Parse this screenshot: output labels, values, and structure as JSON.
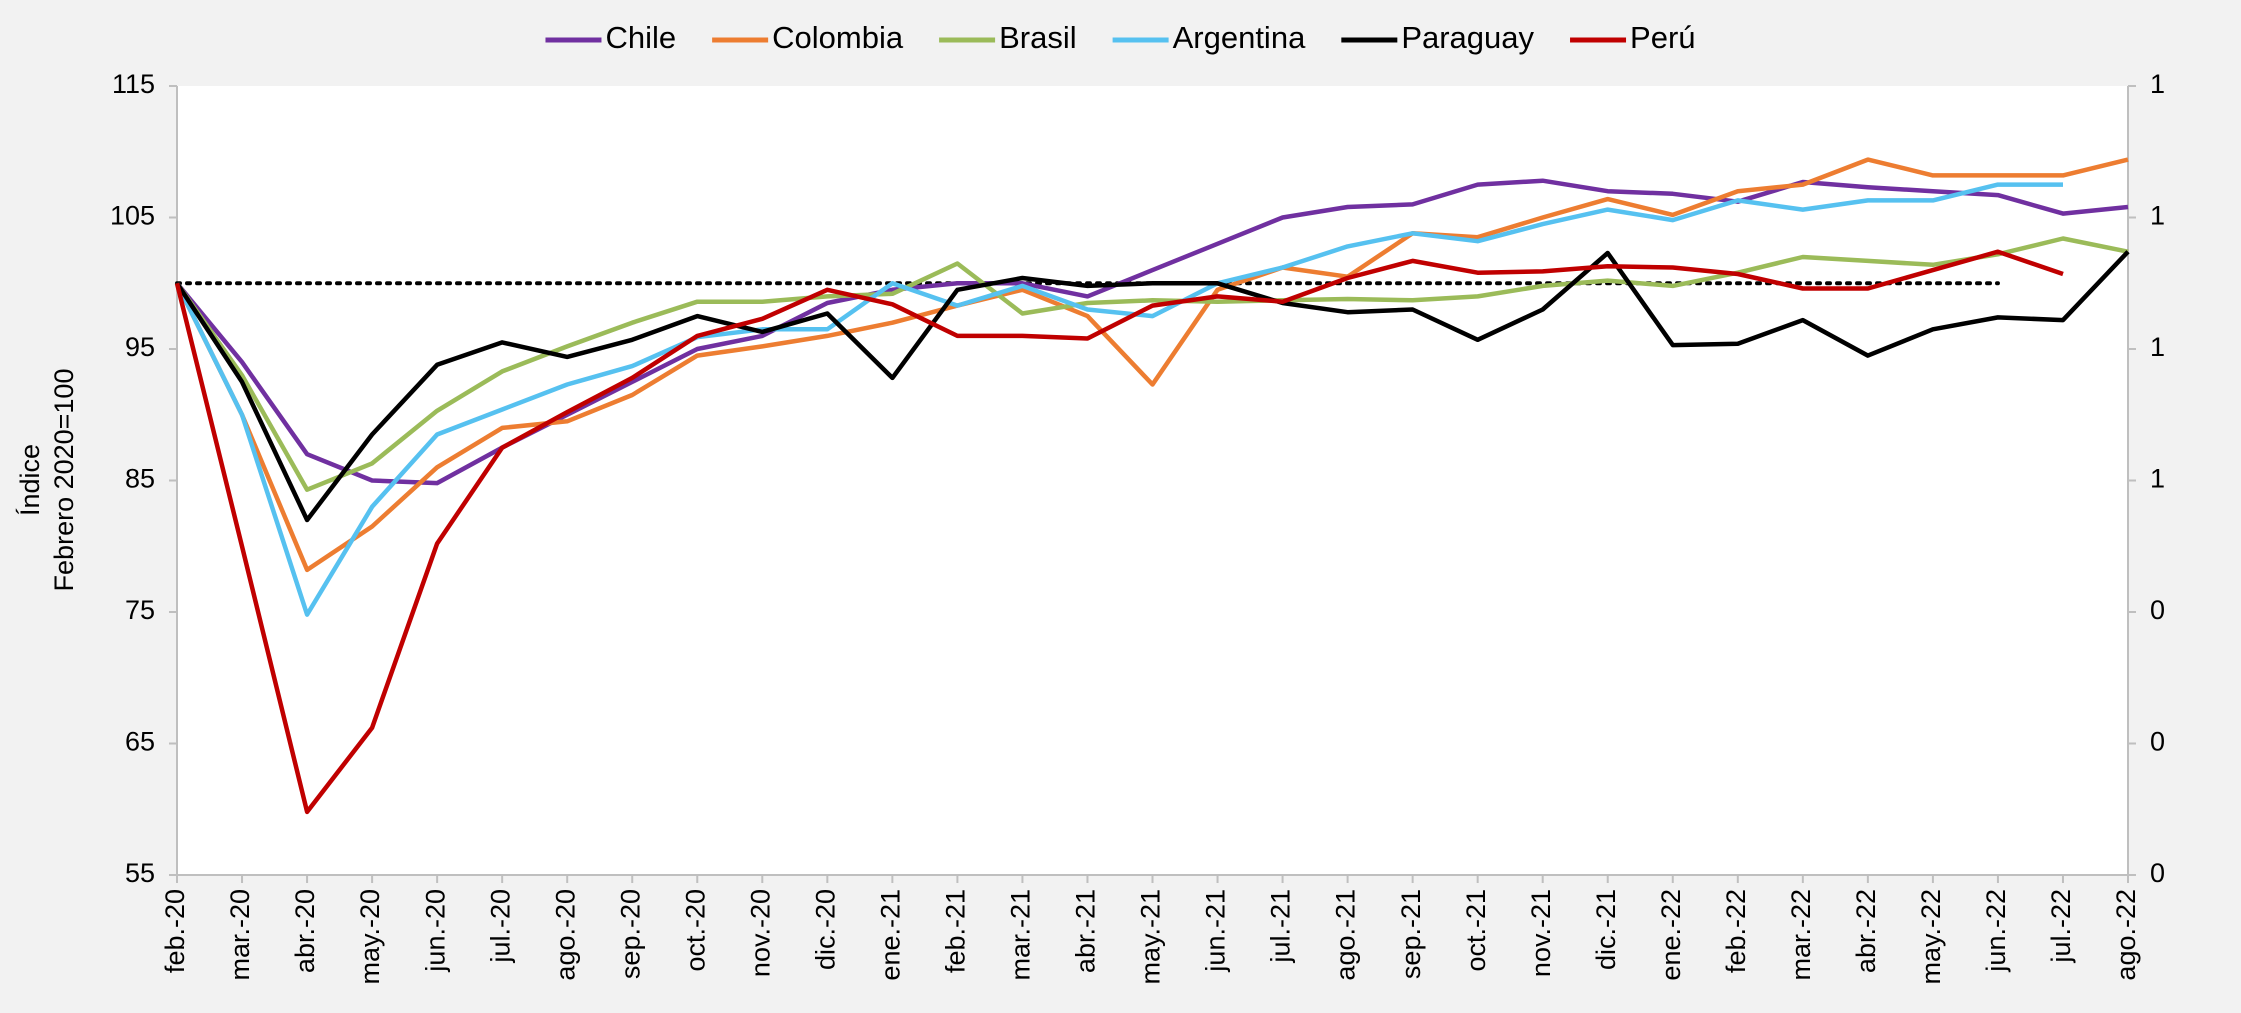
{
  "chart_data": {
    "type": "line",
    "ylabel": [
      "Índice",
      "Febrero 2020=100"
    ],
    "categories": [
      "feb.-20",
      "mar.-20",
      "abr.-20",
      "may.-20",
      "jun.-20",
      "jul.-20",
      "ago.-20",
      "sep.-20",
      "oct.-20",
      "nov.-20",
      "dic.-20",
      "ene.-21",
      "feb.-21",
      "mar.-21",
      "abr.-21",
      "may.-21",
      "jun.-21",
      "jul.-21",
      "ago.-21",
      "sep.-21",
      "oct.-21",
      "nov.-21",
      "dic.-21",
      "ene.-22",
      "feb.-22",
      "mar.-22",
      "abr.-22",
      "may.-22",
      "jun.-22",
      "jul.-22",
      "ago.-22"
    ],
    "ylim": [
      55,
      115
    ],
    "yticks": [
      55,
      65,
      75,
      85,
      95,
      105,
      115
    ],
    "y2lim": [
      0,
      1.2
    ],
    "y2ticks": [
      0,
      {
        "value": 0.2,
        "label": "0"
      },
      {
        "value": 0.4,
        "label": "0"
      },
      {
        "value": 0.6,
        "label": "1"
      },
      {
        "value": 0.8,
        "label": "1"
      },
      1,
      {
        "value": 1.2,
        "label": "1"
      }
    ],
    "reference_line": {
      "y": 100,
      "x": [
        "feb.-20",
        "jun.-22"
      ]
    },
    "legend": "top",
    "series": [
      {
        "name": "Chile",
        "color": "#7030a0",
        "values": [
          100,
          94,
          87,
          85,
          84.8,
          87.5,
          90,
          92.5,
          95,
          96,
          98.5,
          99.5,
          100,
          100,
          99,
          101,
          103,
          105,
          105.8,
          106,
          107.5,
          107.8,
          107,
          106.8,
          106.2,
          107.7,
          107.3,
          107,
          106.7,
          105.3,
          105.8
        ]
      },
      {
        "name": "Colombia",
        "color": "#ed7d31",
        "values": [
          100,
          90,
          78.2,
          81.5,
          86,
          89,
          89.5,
          91.5,
          94.5,
          95.2,
          96,
          97,
          98.3,
          99.5,
          97.5,
          92.3,
          99.5,
          101.2,
          100.5,
          103.8,
          103.5,
          105,
          106.4,
          105.2,
          107,
          107.5,
          109.4,
          108.2,
          108.2,
          108.2,
          109.4
        ]
      },
      {
        "name": "Brasil",
        "color": "#9bbb59",
        "values": [
          100,
          93,
          84.3,
          86.3,
          90.3,
          93.3,
          95.2,
          97,
          98.6,
          98.6,
          99,
          99.2,
          101.5,
          97.7,
          98.5,
          98.7,
          98.6,
          98.7,
          98.8,
          98.7,
          99,
          99.8,
          100.2,
          99.8,
          100.8,
          102,
          101.7,
          101.4,
          102.2,
          103.4,
          102.4
        ]
      },
      {
        "name": "Argentina",
        "color": "#56c1f0",
        "values": [
          100,
          90,
          74.8,
          83,
          88.5,
          90.4,
          92.3,
          93.7,
          95.9,
          96.5,
          96.5,
          100,
          98.3,
          99.8,
          98,
          97.5,
          100,
          101.2,
          102.8,
          103.8,
          103.2,
          104.5,
          105.6,
          104.8,
          106.3,
          105.6,
          106.3,
          106.3,
          107.5,
          107.5,
          null
        ]
      },
      {
        "name": "Paraguay",
        "color": "#000000",
        "values": [
          100,
          92.5,
          82,
          88.5,
          93.8,
          95.5,
          94.4,
          95.7,
          97.5,
          96.3,
          97.7,
          92.8,
          99.5,
          100.4,
          99.8,
          100,
          100,
          98.5,
          97.8,
          98,
          95.7,
          98,
          102.3,
          95.3,
          95.4,
          97.2,
          94.5,
          96.5,
          97.4,
          97.2,
          102.4
        ]
      },
      {
        "name": "Perú",
        "color": "#c00000",
        "values": [
          100,
          80,
          59.8,
          66.2,
          80.2,
          87.5,
          90.2,
          92.8,
          96,
          97.3,
          99.5,
          98.4,
          96,
          96,
          95.8,
          98.3,
          99,
          98.6,
          100.4,
          101.7,
          100.8,
          100.9,
          101.3,
          101.2,
          100.7,
          99.6,
          99.6,
          101,
          102.4,
          100.7,
          null
        ]
      }
    ]
  }
}
